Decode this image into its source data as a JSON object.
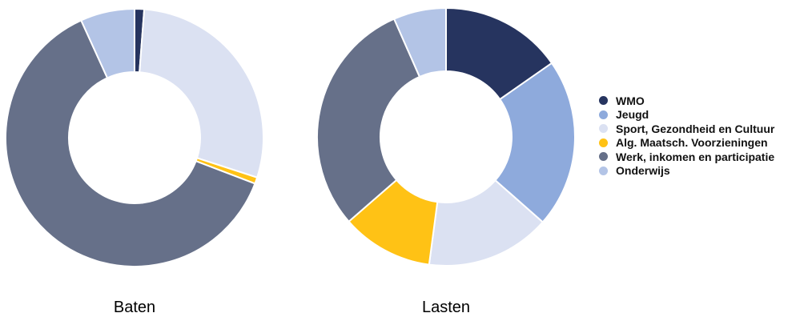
{
  "chart_data": [
    {
      "type": "pie",
      "title": "Baten",
      "donut": true,
      "categories": [
        "WMO",
        "Jeugd",
        "Sport, Gezondheid en Cultuur",
        "Alg. Maatsch. Voorzieningen",
        "Werk, inkomen en participatie",
        "Onderwijs"
      ],
      "values": [
        1.2,
        0,
        28.8,
        0.8,
        62.4,
        6.8
      ]
    },
    {
      "type": "pie",
      "title": "Lasten",
      "donut": true,
      "categories": [
        "WMO",
        "Jeugd",
        "Sport, Gezondheid en Cultuur",
        "Alg. Maatsch. Voorzieningen",
        "Werk, inkomen en participatie",
        "Onderwijs"
      ],
      "values": [
        15.3,
        21.2,
        15.6,
        11.5,
        29.8,
        6.6
      ]
    }
  ],
  "legend": [
    {
      "label": "WMO",
      "color": "#26345f"
    },
    {
      "label": "Jeugd",
      "color": "#8eaadc"
    },
    {
      "label": "Sport, Gezondheid en Cultuur",
      "color": "#dbe1f2"
    },
    {
      "label": "Alg. Maatsch. Voorzieningen",
      "color": "#ffc215"
    },
    {
      "label": "Werk, inkomen en participatie",
      "color": "#667089"
    },
    {
      "label": "Onderwijs",
      "color": "#b3c4e6"
    }
  ]
}
